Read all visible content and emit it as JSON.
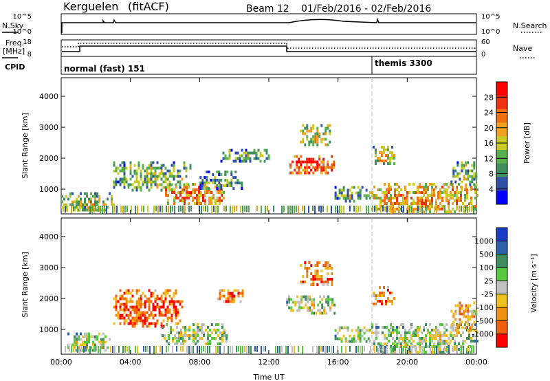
{
  "header": {
    "station": "Kerguelen",
    "fit": "(fitACF)",
    "beam": "Beam 12",
    "date_range": "01/Feb/2016 - 02/Feb/2016"
  },
  "top_panels": {
    "nsky": {
      "label_left": "N.Sky",
      "left_ticks": [
        "10^5",
        "10^0"
      ],
      "label_right": "N.Search",
      "right_ticks": [
        "10^5",
        "10^0"
      ]
    },
    "freq": {
      "label_left_1": "Freq.",
      "label_left_2": "[MHz]",
      "left_ticks": [
        "18",
        "8"
      ],
      "label_right": "Nave",
      "right_ticks": [
        "60",
        "0"
      ]
    },
    "cpid": {
      "label": "CPID",
      "modes": [
        "normal (fast) 151",
        "themis 3300"
      ],
      "mode_change_hour": 18.0
    }
  },
  "colors": {
    "power_scale": [
      "#0000ff",
      "#2f4fa8",
      "#3f8f5e",
      "#58b04c",
      "#c8cc22",
      "#f0a020",
      "#f07010",
      "#f03010",
      "#ff0000"
    ],
    "velocity_scale": [
      "#1a3cc8",
      "#2f5fa8",
      "#3f8f5e",
      "#58c840",
      "#c0c0c0",
      "#f0c020",
      "#f09010",
      "#f06010",
      "#ff0000"
    ]
  },
  "chart_data": [
    {
      "type": "heatmap",
      "title": "Power",
      "ylabel": "Slant Range [km]",
      "xlabel": "",
      "ylim": [
        200,
        4600
      ],
      "xlim": [
        0,
        24
      ],
      "yticks": [
        "1000",
        "2000",
        "3000",
        "4000"
      ],
      "colorbar": {
        "label": "Power [dB]",
        "ticks": [
          "4",
          "8",
          "12",
          "16",
          "20",
          "24",
          "28"
        ],
        "range": [
          0,
          32
        ]
      },
      "regions": [
        {
          "t0": 0.0,
          "t1": 3.0,
          "r0": 300,
          "r1": 900,
          "level": 0.45
        },
        {
          "t0": 3.0,
          "t1": 7.5,
          "r0": 1000,
          "r1": 1900,
          "level": 0.4
        },
        {
          "t0": 6.0,
          "t1": 9.5,
          "r0": 500,
          "r1": 1200,
          "level": 0.7
        },
        {
          "t0": 8.0,
          "t1": 10.5,
          "r0": 1000,
          "r1": 1600,
          "level": 0.3
        },
        {
          "t0": 9.2,
          "t1": 12.0,
          "r0": 1900,
          "r1": 2300,
          "level": 0.35
        },
        {
          "t0": 13.2,
          "t1": 15.8,
          "r0": 1500,
          "r1": 2100,
          "level": 0.8
        },
        {
          "t0": 13.8,
          "t1": 15.6,
          "r0": 2400,
          "r1": 3100,
          "level": 0.5
        },
        {
          "t0": 15.8,
          "t1": 17.8,
          "r0": 600,
          "r1": 1100,
          "level": 0.35
        },
        {
          "t0": 17.8,
          "t1": 24.0,
          "r0": 250,
          "r1": 1200,
          "level": 0.65
        },
        {
          "t0": 18.0,
          "t1": 19.2,
          "r0": 1800,
          "r1": 2400,
          "level": 0.55
        },
        {
          "t0": 22.5,
          "t1": 24.0,
          "r0": 1000,
          "r1": 1900,
          "level": 0.4
        }
      ]
    },
    {
      "type": "heatmap",
      "title": "Velocity",
      "ylabel": "Slant Range [km]",
      "xlabel": "Time UT",
      "ylim": [
        200,
        4600
      ],
      "xlim": [
        0,
        24
      ],
      "yticks": [
        "1000",
        "2000",
        "3000",
        "4000"
      ],
      "xticks": [
        "00:00",
        "04:00",
        "08:00",
        "12:00",
        "16:00",
        "20:00",
        "00:00"
      ],
      "colorbar": {
        "label": "Velocity [m s⁻¹]",
        "ticks": [
          "1000",
          "500",
          "100",
          "25",
          "-25",
          "-100",
          "-500",
          "-1000"
        ]
      },
      "regions": [
        {
          "t0": 0.0,
          "t1": 3.0,
          "r0": 300,
          "r1": 900,
          "level": 0.5
        },
        {
          "t0": 3.0,
          "t1": 7.0,
          "r0": 1100,
          "r1": 2300,
          "level": 0.85
        },
        {
          "t0": 5.8,
          "t1": 9.5,
          "r0": 500,
          "r1": 1200,
          "level": 0.5
        },
        {
          "t0": 9.0,
          "t1": 10.5,
          "r0": 1900,
          "r1": 2300,
          "level": 0.75
        },
        {
          "t0": 13.0,
          "t1": 15.8,
          "r0": 1500,
          "r1": 2100,
          "level": 0.5
        },
        {
          "t0": 13.8,
          "t1": 15.6,
          "r0": 2400,
          "r1": 3200,
          "level": 0.8
        },
        {
          "t0": 15.8,
          "t1": 17.8,
          "r0": 600,
          "r1": 1100,
          "level": 0.5
        },
        {
          "t0": 17.8,
          "t1": 24.0,
          "r0": 250,
          "r1": 1200,
          "level": 0.5
        },
        {
          "t0": 18.0,
          "t1": 19.2,
          "r0": 1800,
          "r1": 2400,
          "level": 0.8
        },
        {
          "t0": 22.5,
          "t1": 24.0,
          "r0": 1000,
          "r1": 1900,
          "level": 0.7
        }
      ]
    }
  ]
}
